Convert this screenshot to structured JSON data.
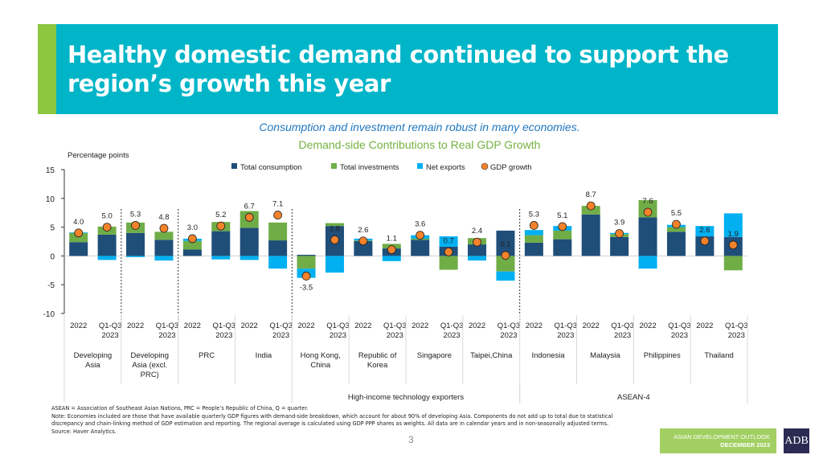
{
  "header": {
    "title": "Healthy domestic demand continued to support the region’s growth this year",
    "colors": {
      "banner": "#00b5c8",
      "stripe": "#8dc63f"
    }
  },
  "subtitle": "Consumption and investment remain robust in many economies.",
  "chart_data": {
    "type": "bar",
    "stacked": true,
    "title": "Demand-side Contributions to Real GDP Growth",
    "ylabel": "Percentage points",
    "xlabel": "",
    "ylim": [
      -10,
      15
    ],
    "yticks": [
      15,
      10,
      5,
      0,
      -5,
      -10
    ],
    "legend_position": "top",
    "legend": [
      {
        "name": "Total consumption",
        "color": "#1f4e79",
        "kind": "square"
      },
      {
        "name": "Total investments",
        "color": "#70ad47",
        "kind": "square"
      },
      {
        "name": "Net exports",
        "color": "#00b0f0",
        "kind": "square"
      },
      {
        "name": "GDP growth",
        "color": "#f4822a",
        "kind": "circle"
      }
    ],
    "period_labels": [
      "2022",
      "Q1-Q3\n2023"
    ],
    "economies": [
      "Developing\nAsia",
      "Developing\nAsia (excl.\nPRC)",
      "PRC",
      "India",
      "Hong Kong,\nChina",
      "Republic of\nKorea",
      "Singapore",
      "Taipei,China",
      "Indonesia",
      "Malaysia",
      "Philippines",
      "Thailand"
    ],
    "groups": [
      {
        "label": "High-income technology exporters",
        "from": 4,
        "to": 7
      },
      {
        "label": "ASEAN-4",
        "from": 8,
        "to": 11
      }
    ],
    "dashed_separators_after": [
      0,
      1,
      3,
      7
    ],
    "categories": [
      "Developing Asia 2022",
      "Developing Asia Q1-Q3 2023",
      "Developing Asia (excl. PRC) 2022",
      "Developing Asia (excl. PRC) Q1-Q3 2023",
      "PRC 2022",
      "PRC Q1-Q3 2023",
      "India 2022",
      "India Q1-Q3 2023",
      "Hong Kong, China 2022",
      "Hong Kong, China Q1-Q3 2023",
      "Republic of Korea 2022",
      "Republic of Korea Q1-Q3 2023",
      "Singapore 2022",
      "Singapore Q1-Q3 2023",
      "Taipei,China 2022",
      "Taipei,China Q1-Q3 2023",
      "Indonesia 2022",
      "Indonesia Q1-Q3 2023",
      "Malaysia 2022",
      "Malaysia Q1-Q3 2023",
      "Philippines 2022",
      "Philippines Q1-Q3 2023",
      "Thailand 2022",
      "Thailand Q1-Q3 2023"
    ],
    "series": [
      {
        "name": "Total consumption",
        "values": [
          2.4,
          3.7,
          4.0,
          2.8,
          1.1,
          4.3,
          4.9,
          2.7,
          0.2,
          5.2,
          2.6,
          1.3,
          2.8,
          1.6,
          2.0,
          4.4,
          2.3,
          2.9,
          7.2,
          3.3,
          6.7,
          4.2,
          3.4,
          3.3
        ]
      },
      {
        "name": "Total investments",
        "values": [
          1.6,
          1.4,
          1.8,
          1.4,
          1.5,
          1.6,
          2.9,
          3.1,
          -2.2,
          0.5,
          0.1,
          0.8,
          0.2,
          -2.4,
          1.1,
          -2.7,
          1.3,
          1.5,
          1.5,
          0.5,
          3.0,
          0.8,
          0.0,
          -2.5
        ]
      },
      {
        "name": "Net exports",
        "values": [
          0.1,
          -0.7,
          -0.2,
          -0.8,
          0.4,
          -0.6,
          -0.7,
          -2.2,
          -1.6,
          -2.9,
          0.3,
          -0.9,
          0.6,
          1.8,
          -0.8,
          -1.6,
          0.9,
          0.8,
          0.0,
          0.2,
          -2.2,
          0.4,
          1.8,
          4.1
        ]
      },
      {
        "name": "GDP growth",
        "values": [
          4.0,
          5.0,
          5.3,
          4.8,
          3.0,
          5.2,
          6.7,
          7.1,
          -3.5,
          2.8,
          2.6,
          1.1,
          3.6,
          0.7,
          2.4,
          0.1,
          5.3,
          5.1,
          8.7,
          3.9,
          7.6,
          5.5,
          2.6,
          1.9
        ]
      }
    ],
    "grid": false
  },
  "footnotes": {
    "abbrev": "ASEAN = Association of Southeast Asian Nations, PRC = People’s Republic of China, Q = quarter.",
    "note": "Note: Economies included are those that have available quarterly GDP figures with demand-side breakdown, which account for about 90% of developing Asia. Components do not add up to total due to statistical discrepancy and chain-linking method of GDP estimation and reporting. The regional average is calculated using GDP PPP shares as weights. All data are in calendar years and in non-seasonally adjusted terms.",
    "source": "Source: Haver Analytics."
  },
  "page_number": "3",
  "badge": {
    "line1": "ASIAN DEVELOPMENT OUTLOOK",
    "line2": "DECEMBER 2023"
  },
  "logo": "ADB"
}
